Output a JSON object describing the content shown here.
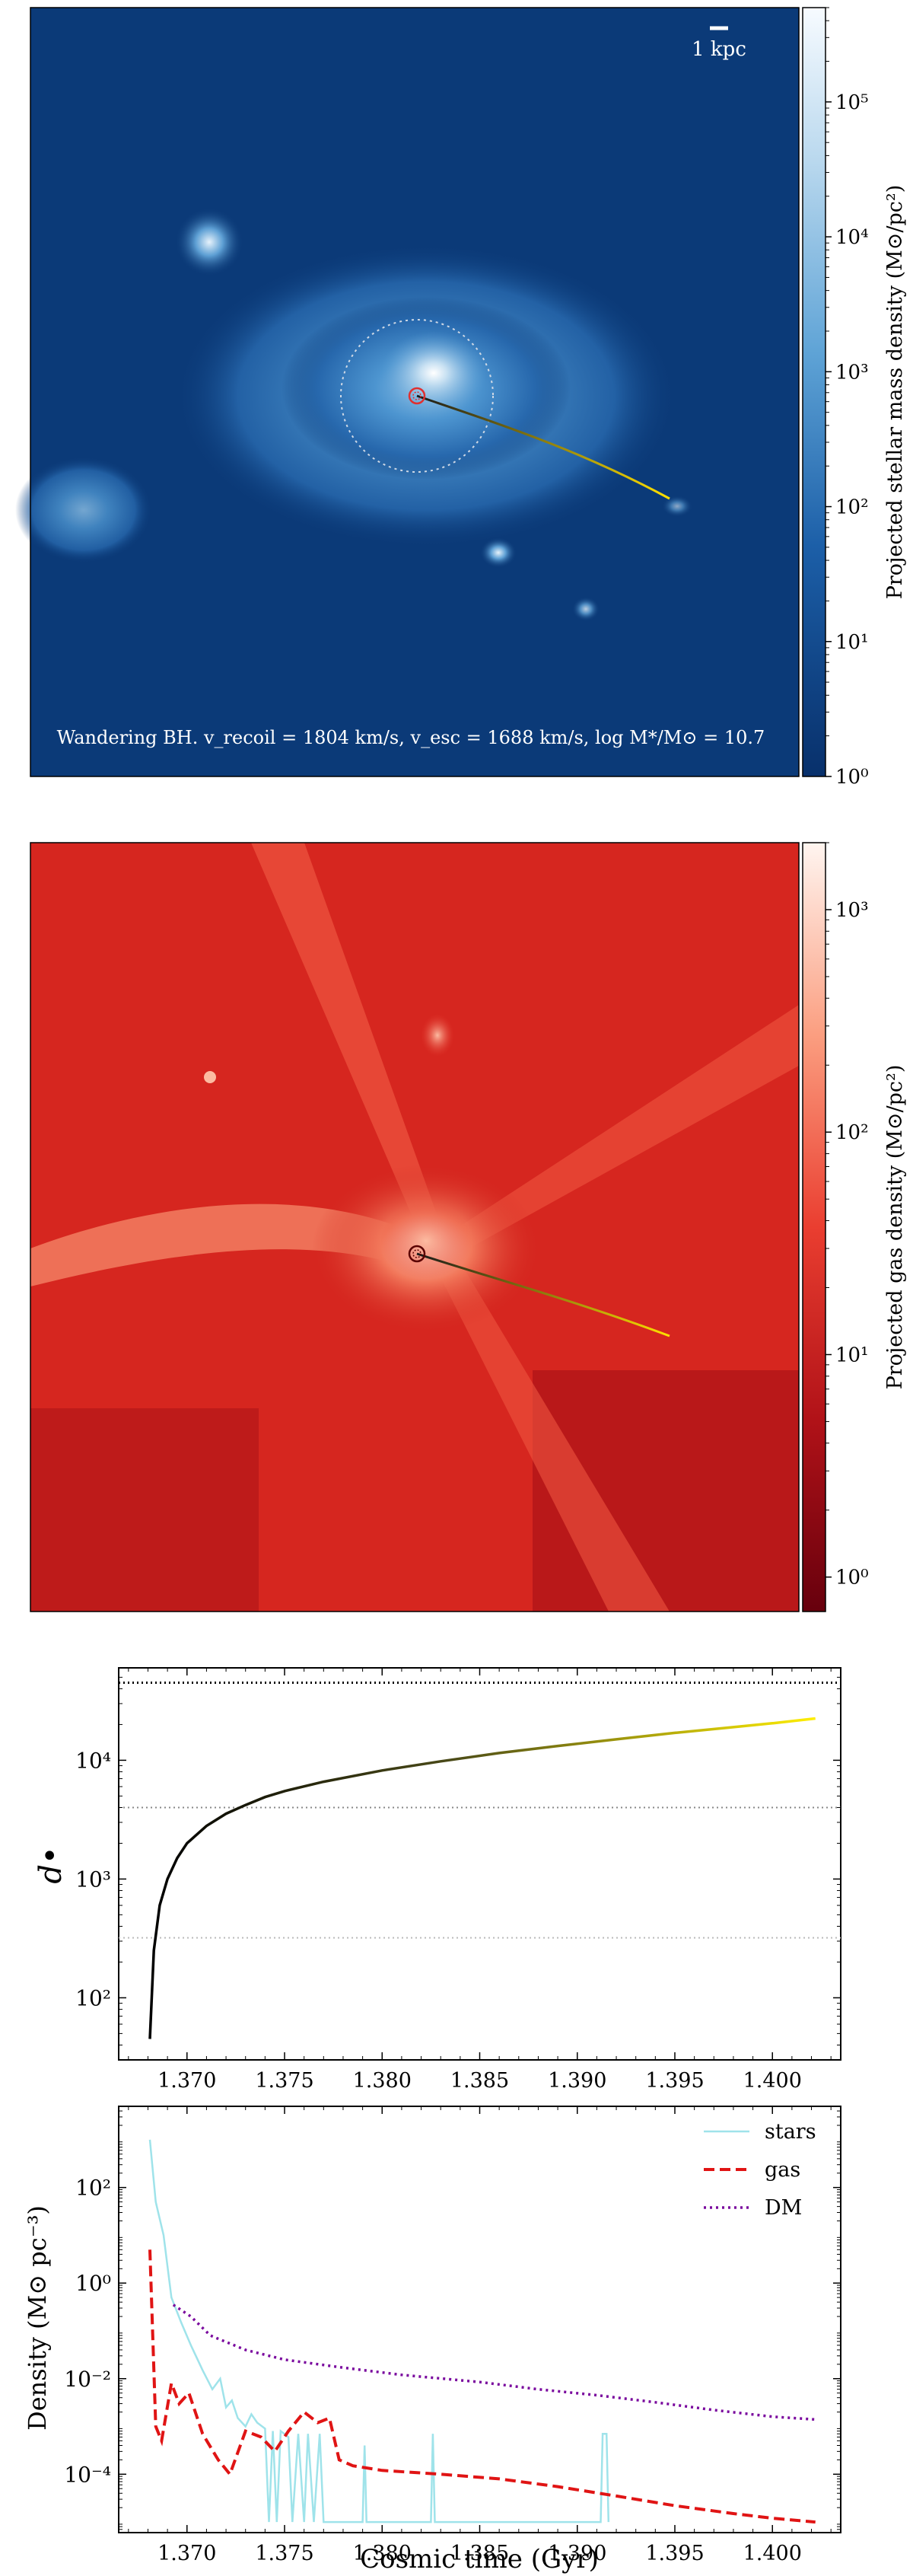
{
  "chart_data": [
    {
      "type": "heatmap",
      "colormap": "Blues_r",
      "colors": {
        "low": "#08306b",
        "mid": "#3e8ccb",
        "high": "#f7fbff",
        "trajectory_start": "#1a1a1a",
        "trajectory_end": "#ffe000",
        "bh_marker": "#e03030"
      },
      "scale_bar_label": "1 kpc",
      "annotation": "Wandering BH. $v_{\\rm recoil} = 1804$ km/s, $v_{\\rm esc} = 1688$ km/s, $\\log M_*/M_\\odot = 10.7$",
      "annotation_display": "Wandering BH. v_recoil = 1804 km/s, v_esc = 1688 km/s, log M*/M⊙ = 10.7",
      "colorbar": {
        "label": "Projected stellar mass density (M⊙/pc²)",
        "scale": "log",
        "range": [
          1,
          500000
        ],
        "ticks": [
          {
            "value": 1,
            "label": "10⁰"
          },
          {
            "value": 10,
            "label": "10¹"
          },
          {
            "value": 100,
            "label": "10²"
          },
          {
            "value": 1000,
            "label": "10³"
          },
          {
            "value": 10000,
            "label": "10⁴"
          },
          {
            "value": 100000,
            "label": "10⁵"
          }
        ]
      }
    },
    {
      "type": "heatmap",
      "colormap": "Reds_r",
      "colors": {
        "low": "#67000d",
        "mid": "#e33b2d",
        "high": "#fff5f0",
        "trajectory_start": "#1a1a1a",
        "trajectory_end": "#ffe000",
        "bh_marker": "#8b0000"
      },
      "colorbar": {
        "label": "Projected gas density (M⊙/pc²)",
        "scale": "log",
        "range": [
          0.7,
          2000
        ],
        "ticks": [
          {
            "value": 1,
            "label": "10⁰"
          },
          {
            "value": 10,
            "label": "10¹"
          },
          {
            "value": 100,
            "label": "10²"
          },
          {
            "value": 1000,
            "label": "10³"
          }
        ]
      }
    },
    {
      "type": "line",
      "ylabel": "d•",
      "yscale": "log",
      "xlim": [
        1.3665,
        1.4035
      ],
      "ylim": [
        30,
        60000
      ],
      "grid": false,
      "x_ticks": [
        {
          "value": 1.37,
          "label": "1.370"
        },
        {
          "value": 1.375,
          "label": "1.375"
        },
        {
          "value": 1.38,
          "label": "1.380"
        },
        {
          "value": 1.385,
          "label": "1.385"
        },
        {
          "value": 1.39,
          "label": "1.390"
        },
        {
          "value": 1.395,
          "label": "1.395"
        },
        {
          "value": 1.4,
          "label": "1.400"
        }
      ],
      "y_ticks": [
        {
          "value": 100,
          "label": "10²"
        },
        {
          "value": 1000,
          "label": "10³"
        },
        {
          "value": 10000,
          "label": "10⁴"
        }
      ],
      "hlines": [
        {
          "y": 45000,
          "style": "dotted",
          "color": "#000000"
        },
        {
          "y": 4000,
          "style": "dotted",
          "color": "#888888"
        },
        {
          "y": 320,
          "style": "dotted",
          "color": "#bbbbbb"
        }
      ],
      "series": [
        {
          "color_gradient": [
            "#000000",
            "#ffee00"
          ],
          "points": [
            [
              1.3681,
              45
            ],
            [
              1.3683,
              250
            ],
            [
              1.3686,
              600
            ],
            [
              1.369,
              1000
            ],
            [
              1.3695,
              1500
            ],
            [
              1.37,
              2000
            ],
            [
              1.371,
              2800
            ],
            [
              1.372,
              3550
            ],
            [
              1.373,
              4200
            ],
            [
              1.374,
              4900
            ],
            [
              1.375,
              5500
            ],
            [
              1.377,
              6600
            ],
            [
              1.38,
              8200
            ],
            [
              1.383,
              9800
            ],
            [
              1.386,
              11500
            ],
            [
              1.389,
              13200
            ],
            [
              1.392,
              15000
            ],
            [
              1.395,
              17000
            ],
            [
              1.398,
              19000
            ],
            [
              1.4,
              20500
            ],
            [
              1.4022,
              22500
            ]
          ]
        }
      ]
    },
    {
      "type": "line",
      "xlabel": "Cosmic time (Gyr)",
      "ylabel": "Density (M⊙ pc⁻³)",
      "yscale": "log",
      "xlim": [
        1.3665,
        1.4035
      ],
      "ylim": [
        6e-06,
        5000
      ],
      "grid": false,
      "legend_position": "top-right",
      "x_ticks": [
        {
          "value": 1.37,
          "label": "1.370"
        },
        {
          "value": 1.375,
          "label": "1.375"
        },
        {
          "value": 1.38,
          "label": "1.380"
        },
        {
          "value": 1.385,
          "label": "1.385"
        },
        {
          "value": 1.39,
          "label": "1.390"
        },
        {
          "value": 1.395,
          "label": "1.395"
        },
        {
          "value": 1.4,
          "label": "1.400"
        }
      ],
      "y_ticks": [
        {
          "value": 0.0001,
          "label": "10⁻⁴"
        },
        {
          "value": 0.01,
          "label": "10⁻²"
        },
        {
          "value": 1,
          "label": "10⁰"
        },
        {
          "value": 100,
          "label": "10²"
        }
      ],
      "series": [
        {
          "name": "stars",
          "color": "#9fe3ea",
          "style": "solid",
          "points": [
            [
              1.3681,
              1000
            ],
            [
              1.3684,
              50
            ],
            [
              1.3688,
              10
            ],
            [
              1.3692,
              0.5
            ],
            [
              1.3697,
              0.15
            ],
            [
              1.3702,
              0.05
            ],
            [
              1.3708,
              0.015
            ],
            [
              1.3713,
              0.006
            ],
            [
              1.372,
              0.0025
            ],
            [
              1.3726,
              0.0015
            ],
            [
              1.373,
              0.001
            ],
            [
              1.3736,
              0.0015
            ],
            [
              1.374,
              0.0009
            ],
            [
              1.3744,
              2e-05
            ],
            [
              1.3746,
              0.0008
            ],
            [
              1.3752,
              0.0006
            ],
            [
              1.3754,
              2e-05
            ],
            [
              1.3757,
              0.0007
            ],
            [
              1.376,
              2e-05
            ],
            [
              1.3762,
              0.0007
            ],
            [
              1.3765,
              2e-05
            ],
            [
              1.3768,
              2e-05
            ],
            [
              1.377,
              2e-05
            ],
            [
              1.379,
              2e-05
            ],
            [
              1.3792,
              2e-05
            ],
            [
              1.3825,
              2e-05
            ],
            [
              1.3912,
              2e-05
            ],
            [
              1.3915,
              2e-05
            ]
          ],
          "display_points": [
            [
              1.3681,
              1000
            ],
            [
              1.3684,
              50
            ],
            [
              1.3688,
              10
            ],
            [
              1.3692,
              0.5
            ],
            [
              1.3697,
              0.15
            ],
            [
              1.3702,
              0.05
            ],
            [
              1.3708,
              0.015
            ],
            [
              1.3713,
              0.006
            ],
            [
              1.3717,
              0.01
            ],
            [
              1.372,
              0.0025
            ],
            [
              1.3723,
              0.0035
            ],
            [
              1.3726,
              0.0015
            ],
            [
              1.373,
              0.001
            ],
            [
              1.3733,
              0.0018
            ],
            [
              1.3736,
              0.0012
            ],
            [
              1.374,
              0.0009
            ],
            [
              1.3742,
              1e-05
            ],
            [
              1.3744,
              0.0008
            ],
            [
              1.3746,
              1e-05
            ],
            [
              1.3748,
              0.0008
            ],
            [
              1.3752,
              0.0006
            ],
            [
              1.3754,
              1e-05
            ],
            [
              1.3757,
              0.0007
            ],
            [
              1.376,
              1e-05
            ],
            [
              1.3762,
              0.0007
            ],
            [
              1.3765,
              1e-05
            ],
            [
              1.3768,
              0.0007
            ],
            [
              1.377,
              1e-05
            ],
            [
              1.3772,
              1e-05
            ],
            [
              1.379,
              1e-05
            ],
            [
              1.3791,
              0.0004
            ],
            [
              1.3792,
              1e-05
            ],
            [
              1.3825,
              1e-05
            ],
            [
              1.3826,
              0.0007
            ],
            [
              1.3827,
              1e-05
            ],
            [
              1.3912,
              1e-05
            ],
            [
              1.3913,
              0.0007
            ],
            [
              1.3915,
              0.0007
            ],
            [
              1.3916,
              1e-05
            ]
          ]
        },
        {
          "name": "gas",
          "color": "#e01414",
          "style": "dashed",
          "points": [
            [
              1.3681,
              5
            ],
            [
              1.3684,
              0.001
            ],
            [
              1.3687,
              0.0005
            ],
            [
              1.3692,
              0.008
            ],
            [
              1.3696,
              0.003
            ],
            [
              1.3701,
              0.005
            ],
            [
              1.3708,
              0.0007
            ],
            [
              1.3716,
              0.0002
            ],
            [
              1.3722,
              0.0001
            ],
            [
              1.373,
              0.0008
            ],
            [
              1.3738,
              0.0006
            ],
            [
              1.3745,
              0.0003
            ],
            [
              1.3752,
              0.0008
            ],
            [
              1.376,
              0.002
            ],
            [
              1.3767,
              0.0012
            ],
            [
              1.3773,
              0.0015
            ],
            [
              1.3778,
              0.0002
            ],
            [
              1.3785,
              0.00015
            ],
            [
              1.38,
              0.00012
            ],
            [
              1.383,
              0.0001
            ],
            [
              1.386,
              8e-05
            ],
            [
              1.389,
              5.5e-05
            ],
            [
              1.392,
              3.5e-05
            ],
            [
              1.395,
              2.2e-05
            ],
            [
              1.398,
              1.5e-05
            ],
            [
              1.4,
              1.2e-05
            ],
            [
              1.4022,
              1e-05
            ]
          ]
        },
        {
          "name": "DM",
          "color": "#7a0a9e",
          "style": "dotted",
          "points": [
            [
              1.3693,
              0.35
            ],
            [
              1.3702,
              0.2
            ],
            [
              1.3712,
              0.08
            ],
            [
              1.373,
              0.04
            ],
            [
              1.375,
              0.025
            ],
            [
              1.378,
              0.017
            ],
            [
              1.381,
              0.012
            ],
            [
              1.385,
              0.0085
            ],
            [
              1.388,
              0.006
            ],
            [
              1.391,
              0.0045
            ],
            [
              1.394,
              0.0032
            ],
            [
              1.397,
              0.0022
            ],
            [
              1.4,
              0.0016
            ],
            [
              1.4022,
              0.0014
            ]
          ]
        }
      ]
    }
  ]
}
